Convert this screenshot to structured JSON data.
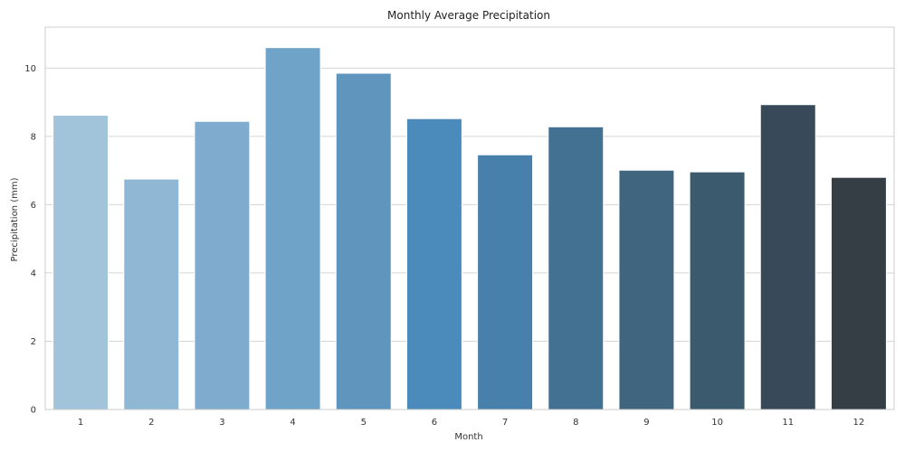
{
  "chart_data": {
    "type": "bar",
    "title": "Monthly Average Precipitation",
    "xlabel": "Month",
    "ylabel": "Precipitation (mm)",
    "categories": [
      "1",
      "2",
      "3",
      "4",
      "5",
      "6",
      "7",
      "8",
      "9",
      "10",
      "11",
      "12"
    ],
    "values": [
      8.62,
      6.75,
      8.44,
      10.6,
      9.85,
      8.52,
      7.46,
      8.28,
      7.01,
      6.96,
      8.93,
      6.8
    ],
    "ylim": [
      0,
      11.2
    ],
    "yticks": [
      0,
      2,
      4,
      6,
      8,
      10
    ],
    "grid": true,
    "legend": "none",
    "colors": [
      "#a1c4da",
      "#90b8d4",
      "#7facce",
      "#6fa3c8",
      "#6096bd",
      "#4b8bbc",
      "#4781ab",
      "#437191",
      "#40657e",
      "#3c5a6e",
      "#38495a",
      "#363e45"
    ]
  }
}
